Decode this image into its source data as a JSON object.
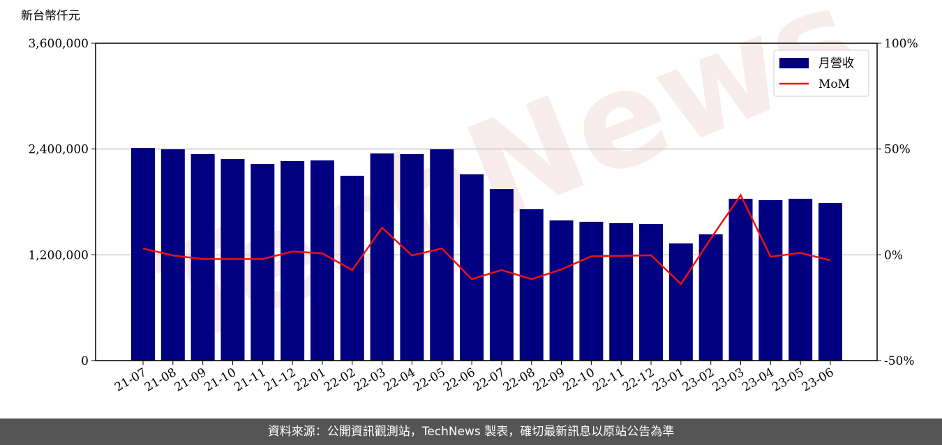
{
  "chart_data": {
    "type": "bar_line",
    "y_axis_label": "新台幣仟元",
    "watermark": "TechNews",
    "source": "資料來源：公開資訊觀測站，TechNews 製表，確切最新訊息以原站公告為準",
    "categories": [
      "21-07",
      "21-08",
      "21-09",
      "21-10",
      "21-11",
      "21-12",
      "22-01",
      "22-02",
      "22-03",
      "22-04",
      "22-05",
      "22-06",
      "22-07",
      "22-08",
      "22-09",
      "22-10",
      "22-11",
      "22-12",
      "23-01",
      "23-02",
      "23-03",
      "23-04",
      "23-05",
      "23-06"
    ],
    "series": [
      {
        "name": "月營收",
        "type": "bar",
        "color": "#000080",
        "values": [
          2413000,
          2397000,
          2342000,
          2287000,
          2231000,
          2263000,
          2271000,
          2097000,
          2350000,
          2342000,
          2397000,
          2113000,
          1946000,
          1717000,
          1590000,
          1575000,
          1559000,
          1551000,
          1329000,
          1432000,
          1836000,
          1820000,
          1836000,
          1788000
        ]
      },
      {
        "name": "MoM",
        "type": "line",
        "axis": "y2",
        "color": "#ee1111",
        "values": [
          3.0,
          -0.3,
          -2.0,
          -2.0,
          -2.0,
          1.6,
          0.7,
          -7.2,
          12.8,
          -0.3,
          3.0,
          -11.5,
          -7.2,
          -11.5,
          -6.9,
          -0.7,
          -0.5,
          -0.2,
          -13.8,
          7.7,
          28.2,
          -0.9,
          0.9,
          -2.6
        ]
      }
    ],
    "ylim": [
      0,
      3600000
    ],
    "yticks": [
      {
        "value": 0,
        "label": "0"
      },
      {
        "value": 1200000,
        "label": "1,200,000"
      },
      {
        "value": 2400000,
        "label": "2,400,000"
      },
      {
        "value": 3600000,
        "label": "3,600,000"
      }
    ],
    "y2lim": [
      -50,
      100
    ],
    "y2ticks": [
      {
        "value": -50,
        "label": "-50%"
      },
      {
        "value": 0,
        "label": "0%"
      },
      {
        "value": 50,
        "label": "50%"
      },
      {
        "value": 100,
        "label": "100%"
      }
    ],
    "grid": true,
    "legend": "upper right"
  }
}
